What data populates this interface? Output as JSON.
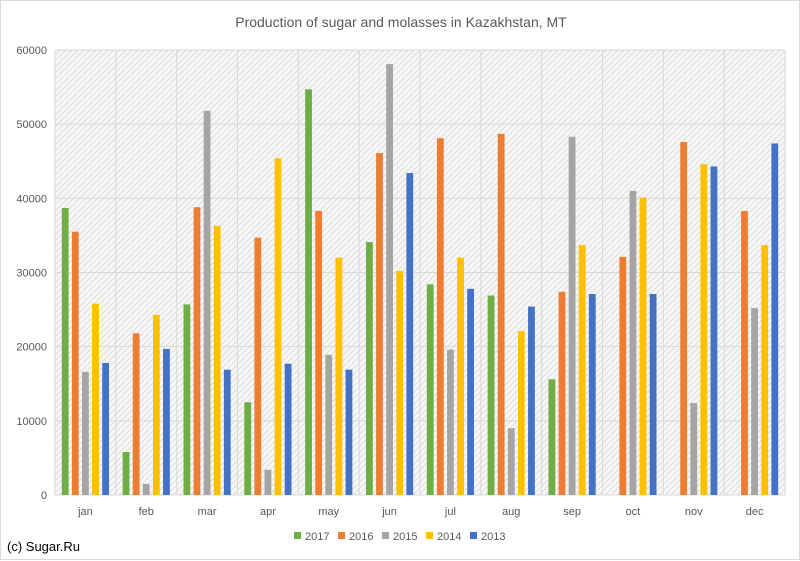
{
  "footer": {
    "credit": "(c) Sugar.Ru"
  },
  "chart_data": {
    "type": "bar",
    "title": "Production of sugar and molasses in Kazakhstan, MT",
    "xlabel": "",
    "ylabel": "",
    "ylim": [
      0,
      60000
    ],
    "yticks": [
      0,
      10000,
      20000,
      30000,
      40000,
      50000,
      60000
    ],
    "grid": true,
    "legend_position": "bottom",
    "categories": [
      "jan",
      "feb",
      "mar",
      "apr",
      "may",
      "jun",
      "jul",
      "aug",
      "sep",
      "oct",
      "nov",
      "dec"
    ],
    "series": [
      {
        "name": "2017",
        "color": "#70ad47",
        "values": [
          38700,
          5800,
          25700,
          12500,
          54700,
          34100,
          28400,
          26900,
          15600,
          null,
          null,
          null
        ]
      },
      {
        "name": "2016",
        "color": "#ed7d31",
        "values": [
          35500,
          21800,
          38800,
          34700,
          38300,
          46100,
          48100,
          48700,
          27400,
          32100,
          47600,
          38300
        ]
      },
      {
        "name": "2015",
        "color": "#a5a5a5",
        "values": [
          16600,
          1500,
          51800,
          3400,
          18900,
          58100,
          19600,
          9000,
          48300,
          41000,
          12400,
          25200
        ]
      },
      {
        "name": "2014",
        "color": "#ffc000",
        "values": [
          25800,
          24300,
          36300,
          45400,
          32000,
          30200,
          32000,
          22100,
          33700,
          40100,
          44600,
          33700
        ]
      },
      {
        "name": "2013",
        "color": "#4472c4",
        "values": [
          17800,
          19700,
          16900,
          17700,
          16900,
          43400,
          27800,
          25400,
          27100,
          27100,
          44300,
          47400
        ]
      }
    ]
  }
}
